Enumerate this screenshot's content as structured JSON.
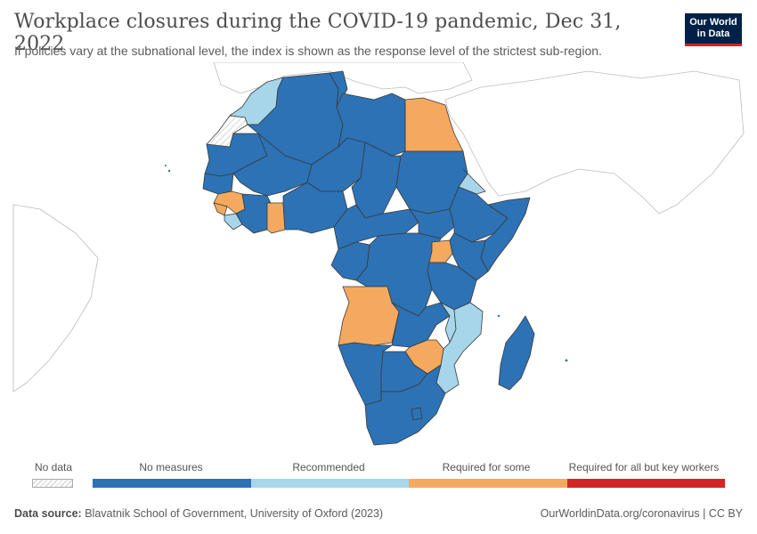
{
  "header": {
    "title": "Workplace closures during the COVID-19 pandemic, Dec 31, 2022",
    "subtitle": "If policies vary at the subnational level, the index is shown as the response level of the strictest sub-region."
  },
  "logo": {
    "line1": "Our World",
    "line2": "in Data"
  },
  "colors": {
    "no_measures": "#2c72b5",
    "recommended": "#a7d6ea",
    "required_for_some": "#f5a95e",
    "required_all": "#d32426",
    "no_data_hatch": "#cccccc",
    "background_land": "#ffffff",
    "border": "#3a3a3a"
  },
  "legend": {
    "no_data": "No data",
    "categories": [
      "No measures",
      "Recommended",
      "Required for some",
      "Required for all but key workers"
    ]
  },
  "map": {
    "region": "Africa",
    "countries": [
      {
        "name": "Morocco",
        "category": "Recommended"
      },
      {
        "name": "Western Sahara",
        "category": "No data"
      },
      {
        "name": "Algeria",
        "category": "No measures"
      },
      {
        "name": "Tunisia",
        "category": "No measures"
      },
      {
        "name": "Libya",
        "category": "No measures"
      },
      {
        "name": "Egypt",
        "category": "Required for some"
      },
      {
        "name": "Mauritania",
        "category": "No measures"
      },
      {
        "name": "Mali",
        "category": "No measures"
      },
      {
        "name": "Niger",
        "category": "No measures"
      },
      {
        "name": "Chad",
        "category": "No measures"
      },
      {
        "name": "Sudan",
        "category": "No measures"
      },
      {
        "name": "Eritrea",
        "category": "Recommended"
      },
      {
        "name": "Senegal",
        "category": "No measures"
      },
      {
        "name": "Guinea",
        "category": "Required for some"
      },
      {
        "name": "Sierra Leone",
        "category": "Required for some"
      },
      {
        "name": "Liberia",
        "category": "Recommended"
      },
      {
        "name": "Ghana",
        "category": "Required for some"
      },
      {
        "name": "Nigeria",
        "category": "No measures"
      },
      {
        "name": "Ethiopia",
        "category": "No measures"
      },
      {
        "name": "Somalia",
        "category": "No measures"
      },
      {
        "name": "Kenya",
        "category": "No measures"
      },
      {
        "name": "Uganda",
        "category": "Required for some"
      },
      {
        "name": "DR Congo",
        "category": "No measures"
      },
      {
        "name": "Tanzania",
        "category": "No measures"
      },
      {
        "name": "Angola",
        "category": "Required for some"
      },
      {
        "name": "Zambia",
        "category": "No measures"
      },
      {
        "name": "Malawi",
        "category": "Recommended"
      },
      {
        "name": "Mozambique",
        "category": "Recommended"
      },
      {
        "name": "Zimbabwe",
        "category": "Required for some"
      },
      {
        "name": "Namibia",
        "category": "No measures"
      },
      {
        "name": "Botswana",
        "category": "No measures"
      },
      {
        "name": "South Africa",
        "category": "No measures"
      },
      {
        "name": "Madagascar",
        "category": "No measures"
      }
    ]
  },
  "footer": {
    "source_label": "Data source:",
    "source_text": "Blavatnik School of Government, University of Oxford (2023)",
    "right": "OurWorldinData.org/coronavirus | CC BY"
  }
}
